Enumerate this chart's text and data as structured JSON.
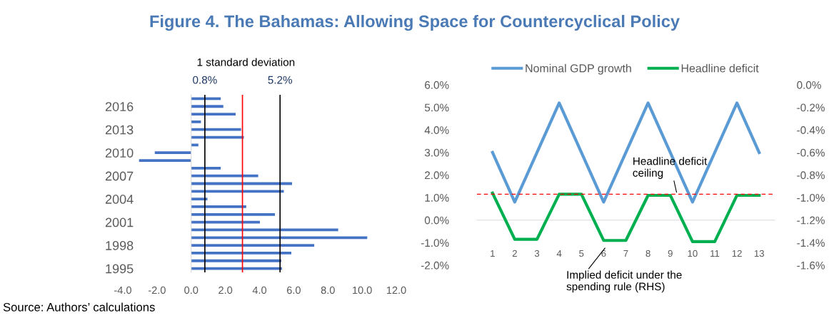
{
  "chart_data": [
    {
      "type": "bar",
      "orientation": "horizontal",
      "title": "Figure 4. The Bahamas: Allowing Space for Countercyclical Policy",
      "categories": [
        null,
        "2016",
        null,
        null,
        "2013",
        null,
        null,
        "2010",
        null,
        null,
        "2007",
        null,
        null,
        "2004",
        null,
        null,
        "2001",
        null,
        null,
        "1998",
        null,
        null,
        "1995"
      ],
      "values": [
        1.73,
        1.88,
        2.6,
        0.57,
        2.92,
        3.08,
        0.42,
        -2.13,
        -3.05,
        1.73,
        3.92,
        5.9,
        5.42,
        0.95,
        3.22,
        4.9,
        4.02,
        8.6,
        10.3,
        7.2,
        5.86,
        5.27,
        5.31
      ],
      "color": "#4472c4",
      "xlim": [
        -4,
        12
      ],
      "xticks": [
        {
          "value": -4,
          "label": "-4.0"
        },
        {
          "value": -2,
          "label": "-2.0"
        },
        {
          "value": 0,
          "label": "0.0"
        },
        {
          "value": 2,
          "label": "2.0"
        },
        {
          "value": 4,
          "label": "4.0"
        },
        {
          "value": 6,
          "label": "6.0"
        },
        {
          "value": 8,
          "label": "8.0"
        },
        {
          "value": 10,
          "label": "10.0"
        },
        {
          "value": 12,
          "label": "12.0"
        }
      ],
      "ref_lines": [
        {
          "axis": "x",
          "value": 0.8,
          "label": "0.8%",
          "color": "#000000"
        },
        {
          "axis": "x",
          "value": 3.0,
          "label": null,
          "color": "#ff0000"
        },
        {
          "axis": "x",
          "value": 5.2,
          "label": "5.2%",
          "color": "#000000"
        }
      ],
      "annotations": [
        "1 standard deviation",
        "Source: Authors’ calculations"
      ],
      "tick_labels": true
    },
    {
      "type": "line",
      "categories": [
        "1",
        "2",
        "3",
        "4",
        "5",
        "6",
        "7",
        "8",
        "9",
        "10",
        "11",
        "12",
        "13"
      ],
      "series": [
        {
          "name": "Nominal GDP growth",
          "color": "#5b9bd5",
          "values": [
            3.0,
            0.8,
            3.0,
            5.2,
            3.0,
            0.8,
            3.0,
            5.2,
            3.0,
            0.8,
            3.0,
            5.2,
            3.0
          ]
        },
        {
          "name": "Headline deficit",
          "color": "#00b050",
          "axis": "y2",
          "values": [
            -0.96,
            -1.37,
            -1.37,
            -0.97,
            -0.97,
            -1.38,
            -1.38,
            -0.98,
            -0.98,
            -1.39,
            -1.39,
            -0.98,
            -0.98
          ]
        }
      ],
      "ylim": [
        -2,
        6
      ],
      "yticks": [
        {
          "value": -2,
          "label": "-2.0%"
        },
        {
          "value": -1,
          "label": "-1.0%"
        },
        {
          "value": 0,
          "label": "0.0%"
        },
        {
          "value": 1,
          "label": "1.0%"
        },
        {
          "value": 2,
          "label": "2.0%"
        },
        {
          "value": 3,
          "label": "3.0%"
        },
        {
          "value": 4,
          "label": "4.0%"
        },
        {
          "value": 5,
          "label": "5.0%"
        },
        {
          "value": 6,
          "label": "6.0%"
        }
      ],
      "y2lim": [
        -1.6,
        0
      ],
      "y2ticks": [
        {
          "value": -1.6,
          "label": "-1.6%"
        },
        {
          "value": -1.4,
          "label": "-1.4%"
        },
        {
          "value": -1.2,
          "label": "-1.2%"
        },
        {
          "value": -1.0,
          "label": "-1.0%"
        },
        {
          "value": -0.8,
          "label": "-0.8%"
        },
        {
          "value": -0.6,
          "label": "-0.6%"
        },
        {
          "value": -0.4,
          "label": "-0.4%"
        },
        {
          "value": -0.2,
          "label": "-0.2%"
        },
        {
          "value": 0,
          "label": "0.0%"
        }
      ],
      "ref_lines": [
        {
          "axis": "y2",
          "value": -0.97,
          "label": "Headline deficit\nceiling",
          "color": "#ff0000",
          "line_style": "dashed"
        }
      ],
      "annotations": [
        "Implied deficit under the\nspending rule (RHS)"
      ],
      "legend": "top",
      "marker": "none",
      "line_style": "solid"
    }
  ]
}
